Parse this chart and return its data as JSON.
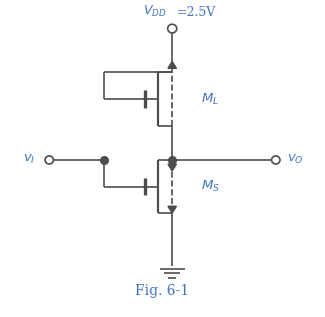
{
  "background_color": "#ffffff",
  "line_color": "#4d4d4d",
  "text_color_blue": "#4472c4",
  "fig_width": 3.25,
  "fig_height": 3.17,
  "title": "Fig. 6-1",
  "vdd_label": "$V_{DD}$",
  "vdd_value": "=2.5V",
  "ml_label": "$M_L$",
  "ms_label": "$M_S$",
  "vi_label": "$v_I$",
  "vo_label": "$v_O$"
}
